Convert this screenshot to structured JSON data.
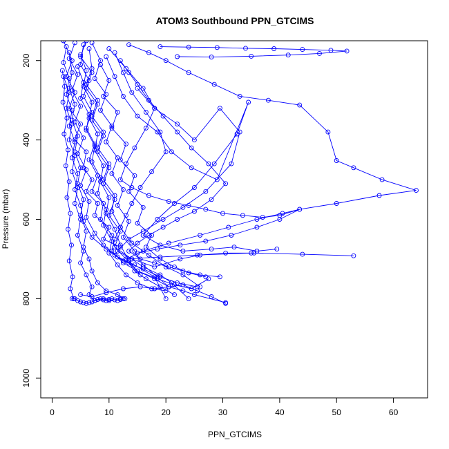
{
  "colors": {
    "series": "#0000ff",
    "axis": "#000000",
    "background": "#ffffff"
  },
  "chart_data": {
    "type": "line",
    "title": "ATOM3 Southbound PPN_GTCIMS",
    "xlabel": "PPN_GTCIMS",
    "ylabel": "Pressure (mbar)",
    "xlim": [
      -2,
      66
    ],
    "ylim": [
      1050,
      150
    ],
    "y_reversed": true,
    "x_ticks": [
      0,
      10,
      20,
      30,
      40,
      50,
      60
    ],
    "y_ticks": [
      200,
      400,
      600,
      800,
      1000
    ],
    "grid": false,
    "legend": "none",
    "marker": "open-circle",
    "series": [
      {
        "x": [
          2.0,
          3.5,
          2.5,
          4.0,
          3.0,
          5.0,
          4.0,
          6.0,
          5.5,
          7.0,
          6.0,
          8.0,
          7.5,
          10.0,
          9.0,
          12.0,
          11.0,
          13.5,
          15.0,
          18.0,
          20.5,
          23.0,
          25.0,
          30.5
        ],
        "y": [
          150,
          200,
          240,
          280,
          320,
          360,
          400,
          430,
          470,
          500,
          530,
          560,
          590,
          620,
          650,
          670,
          690,
          710,
          730,
          750,
          770,
          780,
          790,
          810
        ]
      },
      {
        "x": [
          5.5,
          5.0,
          6.5,
          5.5,
          7.0,
          6.0,
          7.5,
          6.5,
          8.0,
          7.0,
          9.0,
          8.5,
          10.5,
          11.0,
          14.0,
          16.0,
          19.0,
          21.0,
          24.0
        ],
        "y": [
          160,
          210,
          250,
          290,
          330,
          370,
          410,
          450,
          490,
          530,
          560,
          600,
          640,
          670,
          700,
          720,
          740,
          760,
          800
        ]
      },
      {
        "x": [
          4.0,
          3.0,
          4.5,
          3.5,
          5.0,
          4.0,
          5.5,
          4.5,
          6.0,
          5.0,
          6.5,
          6.0,
          7.5,
          9.0,
          11.5,
          14.5,
          18.0,
          20.0
        ],
        "y": [
          155,
          195,
          235,
          275,
          315,
          355,
          395,
          435,
          475,
          515,
          555,
          595,
          635,
          665,
          695,
          715,
          745,
          800
        ]
      },
      {
        "x": [
          2.5,
          2.0,
          3.0,
          2.5,
          3.5,
          3.0,
          4.0,
          3.5,
          4.5,
          4.0,
          5.0,
          5.5,
          7.0,
          9.5,
          12.5,
          16.0,
          19.0,
          22.0,
          25.5
        ],
        "y": [
          165,
          205,
          245,
          285,
          325,
          365,
          405,
          445,
          485,
          525,
          565,
          605,
          645,
          675,
          705,
          725,
          745,
          760,
          770
        ]
      },
      {
        "x": [
          6.5,
          7.0,
          6.0,
          8.0,
          7.0,
          9.0,
          8.0,
          10.0,
          9.0,
          11.0,
          10.5,
          12.0,
          14.0,
          17.0,
          20.0,
          23.0,
          26.0
        ],
        "y": [
          170,
          220,
          260,
          300,
          340,
          380,
          420,
          460,
          500,
          540,
          580,
          620,
          660,
          690,
          720,
          740,
          770
        ]
      },
      {
        "x": [
          11.0,
          12.5,
          14.0,
          16.5,
          19.0,
          20.0,
          17.5,
          15.5,
          14.0,
          13.0,
          12.0,
          11.0,
          10.5,
          12.5,
          15.0,
          18.5,
          21.5,
          24.5,
          27.5
        ],
        "y": [
          180,
          230,
          280,
          330,
          380,
          430,
          480,
          520,
          560,
          590,
          620,
          650,
          680,
          710,
          730,
          750,
          765,
          775,
          750
        ]
      },
      {
        "x": [
          15.0,
          18.0,
          22.0,
          25.0,
          29.5,
          33.0,
          31.5,
          27.0,
          23.0,
          19.5,
          16.0,
          13.5,
          11.5,
          14.0,
          18.0,
          22.5,
          26.0,
          30.5,
          35.5
        ],
        "y": [
          270,
          320,
          360,
          400,
          320,
          380,
          460,
          530,
          570,
          600,
          630,
          650,
          680,
          700,
          720,
          700,
          690,
          685,
          685
        ]
      },
      {
        "x": [
          9.5,
          11.0,
          12.5,
          15.0,
          18.5,
          21.0,
          24.5,
          29.0,
          34.5,
          32.5,
          28.5,
          25.0,
          21.5,
          18.5,
          16.0,
          19.0,
          23.0,
          28.0,
          32.0,
          36.0,
          39.5
        ],
        "y": [
          190,
          240,
          290,
          340,
          380,
          430,
          470,
          500,
          305,
          385,
          460,
          520,
          560,
          600,
          640,
          665,
          680,
          675,
          670,
          680,
          675
        ]
      },
      {
        "x": [
          13.5,
          17.0,
          20.0,
          24.0,
          28.5,
          33.0,
          38.0,
          43.5,
          48.5,
          50.0,
          53.0,
          58.0,
          64.0,
          57.5,
          50.0,
          43.5,
          40.5,
          36.0,
          31.0,
          26.0,
          20.5,
          16.0,
          13.0,
          19.0,
          25.5,
          35.0,
          44.0,
          53.0
        ],
        "y": [
          160,
          180,
          200,
          230,
          260,
          290,
          300,
          312,
          380,
          452,
          470,
          500,
          527,
          540,
          560,
          575,
          585,
          600,
          620,
          640,
          660,
          680,
          700,
          695,
          690,
          685,
          688,
          692
        ]
      },
      {
        "x": [
          19.0,
          24.0,
          29.0,
          34.0,
          39.0,
          44.0,
          49.0,
          51.8,
          47.0,
          41.5,
          35.0,
          28.0,
          22.0
        ],
        "y": [
          165,
          166,
          167,
          169,
          170,
          172,
          174,
          176,
          182,
          186,
          189,
          191,
          190
        ]
      },
      {
        "x": [
          3.0,
          3.5,
          3.0,
          4.0,
          3.5,
          4.5,
          4.0,
          5.0,
          4.5,
          5.5,
          5.0,
          6.0,
          5.5,
          6.5,
          7.0,
          8.0,
          9.5,
          11.5,
          12.8
        ],
        "y": [
          180,
          230,
          270,
          310,
          350,
          390,
          430,
          470,
          510,
          550,
          590,
          630,
          670,
          700,
          730,
          760,
          780,
          790,
          800
        ]
      },
      {
        "x": [
          7.0,
          8.5,
          7.5,
          9.5,
          8.5,
          10.5,
          9.5,
          11.5,
          10.5,
          12.5,
          11.5,
          13.5,
          12.5,
          14.5,
          16.0,
          18.5,
          20.5
        ],
        "y": [
          155,
          200,
          245,
          285,
          325,
          365,
          405,
          445,
          485,
          525,
          565,
          605,
          645,
          680,
          715,
          745,
          770
        ]
      },
      {
        "x": [
          1.8,
          2.2,
          1.9,
          2.6,
          2.1,
          2.8,
          2.4,
          3.0,
          2.6,
          3.2,
          2.8,
          3.4,
          3.0,
          3.6,
          3.2,
          3.8
        ],
        "y": [
          225,
          265,
          305,
          345,
          385,
          425,
          465,
          505,
          545,
          585,
          625,
          665,
          705,
          745,
          775,
          800
        ]
      },
      {
        "x": [
          8.5,
          10.0,
          9.0,
          11.5,
          10.5,
          13.0,
          12.0,
          14.5,
          13.5,
          16.0,
          15.0,
          17.5,
          16.5,
          19.0,
          21.5,
          24.0,
          27.0
        ],
        "y": [
          210,
          250,
          290,
          330,
          370,
          410,
          450,
          490,
          530,
          570,
          610,
          640,
          670,
          700,
          720,
          735,
          745
        ]
      },
      {
        "x": [
          5.0,
          6.0,
          5.5,
          7.0,
          6.5,
          8.0,
          7.5,
          9.0,
          8.5,
          10.0,
          9.5,
          11.0,
          12.0,
          13.5,
          15.5
        ],
        "y": [
          185,
          225,
          265,
          305,
          345,
          385,
          425,
          465,
          505,
          545,
          585,
          625,
          665,
          705,
          740
        ]
      },
      {
        "x": [
          12.0,
          13.5,
          15.0,
          17.0,
          19.5,
          22.0,
          24.5,
          27.5,
          30.5,
          28.0,
          25.0,
          22.0,
          19.5,
          17.0,
          15.0,
          13.5,
          15.5,
          18.0,
          20.5,
          23.0,
          26.0,
          29.5
        ],
        "y": [
          200,
          230,
          260,
          300,
          340,
          380,
          420,
          460,
          510,
          550,
          580,
          600,
          620,
          640,
          660,
          680,
          700,
          710,
          720,
          730,
          740,
          745
        ]
      },
      {
        "x": [
          2.0,
          3.0,
          2.5,
          3.5,
          3.0,
          4.0,
          3.5,
          4.5,
          4.0,
          5.0,
          4.5,
          5.5,
          5.0,
          6.0,
          7.0,
          6.5,
          7.5,
          9.0,
          10.0,
          12.0
        ],
        "y": [
          240,
          280,
          320,
          360,
          400,
          440,
          480,
          520,
          560,
          600,
          640,
          680,
          710,
          740,
          770,
          790,
          805,
          800,
          805,
          800
        ]
      },
      {
        "x": [
          6.0,
          5.0,
          7.0,
          6.0,
          8.0,
          7.0,
          9.0,
          8.0,
          10.0,
          9.0,
          11.0,
          10.0,
          12.0,
          11.0,
          13.0,
          14.5,
          16.5,
          19.0,
          21.5
        ],
        "y": [
          150,
          190,
          230,
          270,
          310,
          350,
          390,
          430,
          470,
          510,
          550,
          590,
          630,
          670,
          700,
          730,
          750,
          770,
          790
        ]
      },
      {
        "x": [
          10.0,
          13.0,
          16.0,
          18.0,
          16.5,
          14.5,
          13.0,
          12.0,
          14.0,
          17.0,
          20.5,
          24.0,
          27.0,
          30.0,
          33.5,
          37.0,
          40.0,
          43.5,
          40.0,
          36.0,
          31.5,
          27.0,
          22.5,
          18.5,
          15.0
        ],
        "y": [
          170,
          220,
          270,
          320,
          370,
          420,
          460,
          500,
          520,
          540,
          555,
          565,
          575,
          585,
          590,
          595,
          590,
          575,
          600,
          620,
          640,
          655,
          665,
          675,
          685
        ]
      },
      {
        "x": [
          4.5,
          5.5,
          5.0,
          6.5,
          6.0,
          7.5,
          7.0,
          8.5,
          8.0,
          9.5,
          9.0,
          10.5,
          10.0,
          11.5,
          13.0,
          15.0,
          17.5,
          20.0
        ],
        "y": [
          215,
          255,
          295,
          335,
          375,
          415,
          455,
          495,
          535,
          575,
          615,
          655,
          685,
          715,
          740,
          760,
          775,
          780
        ]
      },
      {
        "x": [
          3.5,
          4.0,
          4.5,
          5.0,
          5.5,
          6.0,
          6.5,
          7.0,
          7.5,
          8.0,
          8.5,
          9.0,
          9.5,
          10.0,
          10.5,
          11.0,
          11.5,
          12.0,
          12.5
        ],
        "y": [
          800,
          800,
          805,
          808,
          810,
          812,
          810,
          808,
          805,
          802,
          800,
          803,
          805,
          802,
          800,
          803,
          805,
          802,
          800
        ]
      },
      {
        "x": [
          5.0,
          7.0,
          9.5,
          12.5,
          15.5,
          18.0,
          20.5,
          23.0,
          25.5,
          28.0,
          30.5
        ],
        "y": [
          790,
          795,
          785,
          775,
          770,
          775,
          770,
          765,
          780,
          795,
          812
        ]
      }
    ]
  }
}
